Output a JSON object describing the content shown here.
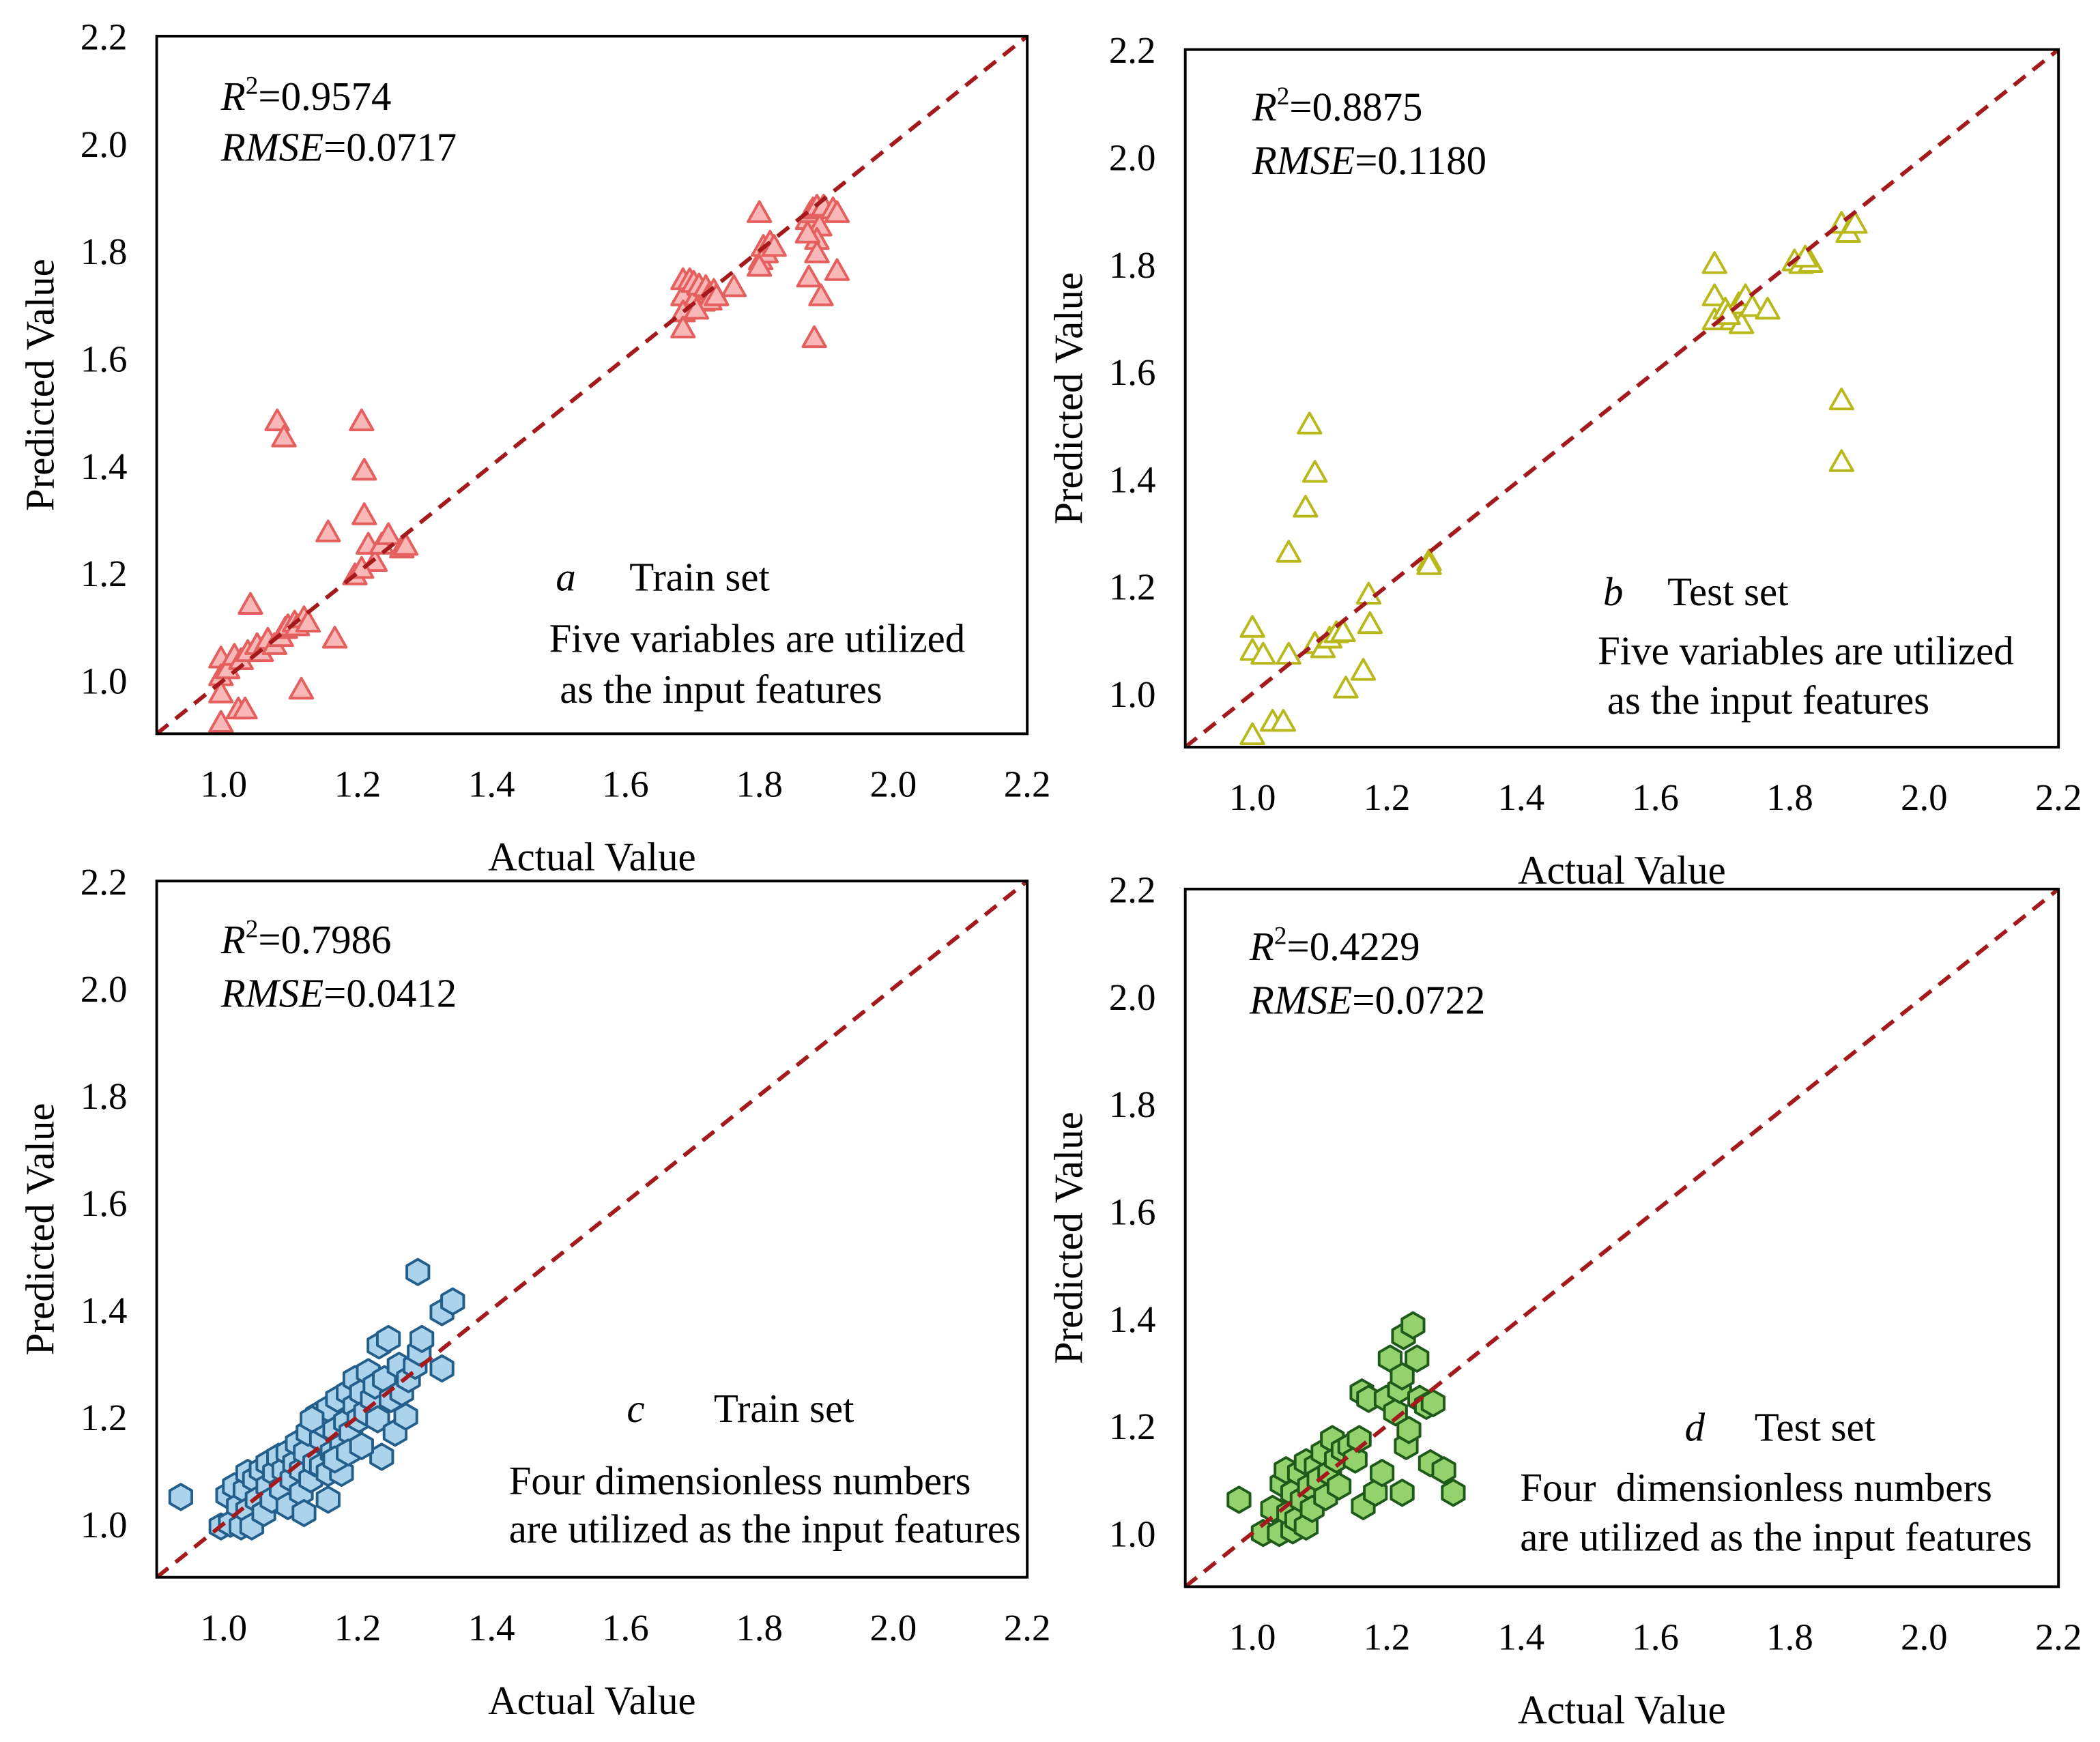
{
  "chart_data": [
    {
      "panel": "a",
      "type": "scatter",
      "subtitle": "Train set",
      "note": [
        "Five variables are utilized",
        "as the input features"
      ],
      "r2": {
        "symbol": "R",
        "exponent": "2",
        "value": "=0.9574"
      },
      "rmse": {
        "symbol": "RMSE",
        "value": "=0.0717"
      },
      "xlabel": "Actual Value",
      "ylabel": "Predicted Value",
      "xlim": [
        0.9,
        2.2
      ],
      "ylim": [
        0.9,
        2.2
      ],
      "xticks": [
        "1.0",
        "1.2",
        "1.4",
        "1.6",
        "1.8",
        "2.0",
        "2.2"
      ],
      "yticks": [
        "1.0",
        "1.2",
        "1.4",
        "1.6",
        "1.8",
        "2.0",
        "2.2"
      ],
      "reference_line": {
        "from": [
          0.9,
          0.9
        ],
        "to": [
          2.2,
          2.2
        ],
        "color": "#a3191c"
      },
      "marker": "triangle",
      "color": {
        "stroke": "#e45f5e",
        "fill": "#f7b8b7"
      },
      "points": [
        [
          0.996,
          1.038
        ],
        [
          0.996,
          1.005
        ],
        [
          0.996,
          0.973
        ],
        [
          0.996,
          0.918
        ],
        [
          1.006,
          1.018
        ],
        [
          1.016,
          1.043
        ],
        [
          1.022,
          0.943
        ],
        [
          1.032,
          0.943
        ],
        [
          1.026,
          1.035
        ],
        [
          1.036,
          1.05
        ],
        [
          1.04,
          1.138
        ],
        [
          1.05,
          1.063
        ],
        [
          1.056,
          1.05
        ],
        [
          1.066,
          1.073
        ],
        [
          1.076,
          1.063
        ],
        [
          1.08,
          1.48
        ],
        [
          1.09,
          1.45
        ],
        [
          1.086,
          1.078
        ],
        [
          1.092,
          1.093
        ],
        [
          1.096,
          1.098
        ],
        [
          1.106,
          1.105
        ],
        [
          1.11,
          1.098
        ],
        [
          1.116,
          0.98
        ],
        [
          1.12,
          1.113
        ],
        [
          1.126,
          1.105
        ],
        [
          1.156,
          1.273
        ],
        [
          1.166,
          1.075
        ],
        [
          1.196,
          1.193
        ],
        [
          1.206,
          1.48
        ],
        [
          1.21,
          1.388
        ],
        [
          1.21,
          1.305
        ],
        [
          1.216,
          1.25
        ],
        [
          1.226,
          1.218
        ],
        [
          1.236,
          1.25
        ],
        [
          1.246,
          1.268
        ],
        [
          1.266,
          1.243
        ],
        [
          1.272,
          1.248
        ],
        [
          1.206,
          1.205
        ],
        [
          1.686,
          1.743
        ],
        [
          1.686,
          1.713
        ],
        [
          1.686,
          1.683
        ],
        [
          1.686,
          1.653
        ],
        [
          1.696,
          1.743
        ],
        [
          1.702,
          1.738
        ],
        [
          1.706,
          1.713
        ],
        [
          1.71,
          1.733
        ],
        [
          1.716,
          1.703
        ],
        [
          1.72,
          1.73
        ],
        [
          1.726,
          1.718
        ],
        [
          1.732,
          1.723
        ],
        [
          1.726,
          1.705
        ],
        [
          1.736,
          1.713
        ],
        [
          1.762,
          1.73
        ],
        [
          1.706,
          1.688
        ],
        [
          1.8,
          1.868
        ],
        [
          1.802,
          1.78
        ],
        [
          1.806,
          1.805
        ],
        [
          1.81,
          1.793
        ],
        [
          1.816,
          1.813
        ],
        [
          1.822,
          1.805
        ],
        [
          1.8,
          1.768
        ],
        [
          1.872,
          1.855
        ],
        [
          1.876,
          1.868
        ],
        [
          1.88,
          1.875
        ],
        [
          1.886,
          1.88
        ],
        [
          1.89,
          1.843
        ],
        [
          1.886,
          1.818
        ],
        [
          1.886,
          1.793
        ],
        [
          1.874,
          1.748
        ],
        [
          1.892,
          1.713
        ],
        [
          1.882,
          1.635
        ],
        [
          1.896,
          1.88
        ],
        [
          1.91,
          1.875
        ],
        [
          1.916,
          1.868
        ],
        [
          1.916,
          1.76
        ],
        [
          1.872,
          1.83
        ]
      ]
    },
    {
      "panel": "b",
      "type": "scatter",
      "subtitle": "Test set",
      "note": [
        "Five variables are utilized",
        "as the input features"
      ],
      "r2": {
        "symbol": "R",
        "exponent": "2",
        "value": "=0.8875"
      },
      "rmse": {
        "symbol": "RMSE",
        "value": "=0.1180"
      },
      "xlabel": "Actual Value",
      "ylabel": "Predicted Value",
      "xlim": [
        0.9,
        2.2
      ],
      "ylim": [
        0.9,
        2.2
      ],
      "xticks": [
        "1.0",
        "1.2",
        "1.4",
        "1.6",
        "1.8",
        "2.0",
        "2.2"
      ],
      "yticks": [
        "1.0",
        "1.2",
        "1.4",
        "1.6",
        "1.8",
        "2.0",
        "2.2"
      ],
      "reference_line": {
        "from": [
          0.9,
          0.9
        ],
        "to": [
          2.2,
          2.2
        ],
        "color": "#a3191c"
      },
      "marker": "triangle",
      "color": {
        "stroke": "#b9b81b",
        "fill": "#ffffff"
      },
      "points": [
        [
          1.0,
          1.12
        ],
        [
          1.0,
          1.077
        ],
        [
          1.0,
          0.92
        ],
        [
          1.016,
          1.07
        ],
        [
          1.03,
          0.945
        ],
        [
          1.046,
          0.945
        ],
        [
          1.054,
          1.07
        ],
        [
          1.054,
          1.26
        ],
        [
          1.079,
          1.344
        ],
        [
          1.085,
          1.499
        ],
        [
          1.093,
          1.409
        ],
        [
          1.093,
          1.09
        ],
        [
          1.105,
          1.082
        ],
        [
          1.115,
          1.1
        ],
        [
          1.125,
          1.11
        ],
        [
          1.135,
          1.112
        ],
        [
          1.139,
          1.007
        ],
        [
          1.165,
          1.04
        ],
        [
          1.173,
          1.182
        ],
        [
          1.175,
          1.127
        ],
        [
          1.263,
          1.244
        ],
        [
          1.263,
          1.237
        ],
        [
          1.688,
          1.798
        ],
        [
          1.688,
          1.738
        ],
        [
          1.688,
          1.693
        ],
        [
          1.704,
          1.713
        ],
        [
          1.714,
          1.693
        ],
        [
          1.724,
          1.723
        ],
        [
          1.728,
          1.686
        ],
        [
          1.734,
          1.738
        ],
        [
          1.744,
          1.718
        ],
        [
          1.767,
          1.713
        ],
        [
          1.708,
          1.703
        ],
        [
          1.807,
          1.803
        ],
        [
          1.817,
          1.798
        ],
        [
          1.831,
          1.8
        ],
        [
          1.823,
          1.81
        ],
        [
          1.877,
          1.873
        ],
        [
          1.887,
          1.856
        ],
        [
          1.897,
          1.873
        ],
        [
          1.877,
          1.544
        ],
        [
          1.877,
          1.429
        ]
      ]
    },
    {
      "panel": "c",
      "type": "scatter",
      "subtitle": "Train set",
      "note": [
        "Four dimensionless numbers",
        "are utilized as the input features"
      ],
      "r2": {
        "symbol": "R",
        "exponent": "2",
        "value": "=0.7986"
      },
      "rmse": {
        "symbol": "RMSE",
        "value": "=0.0412"
      },
      "xlabel": "Actual Value",
      "ylabel": "Predicted Value",
      "xlim": [
        0.9,
        2.2
      ],
      "ylim": [
        0.9,
        2.2
      ],
      "xticks": [
        "1.0",
        "1.2",
        "1.4",
        "1.6",
        "1.8",
        "2.0",
        "2.2"
      ],
      "yticks": [
        "1.0",
        "1.2",
        "1.4",
        "1.6",
        "1.8",
        "2.0",
        "2.2"
      ],
      "reference_line": {
        "from": [
          0.9,
          0.9
        ],
        "to": [
          2.2,
          2.2
        ],
        "color": "#a3191c"
      },
      "marker": "hexagon",
      "color": {
        "stroke": "#245f8c",
        "fill": "#acd3ec"
      },
      "points": [
        [
          0.936,
          1.05
        ],
        [
          0.996,
          0.995
        ],
        [
          1.006,
          1.053
        ],
        [
          1.01,
          1.0
        ],
        [
          1.016,
          1.07
        ],
        [
          1.022,
          1.033
        ],
        [
          1.026,
          0.995
        ],
        [
          1.032,
          1.063
        ],
        [
          1.036,
          1.025
        ],
        [
          1.036,
          1.095
        ],
        [
          1.042,
          0.995
        ],
        [
          1.046,
          1.083
        ],
        [
          1.05,
          1.045
        ],
        [
          1.056,
          1.1
        ],
        [
          1.06,
          1.02
        ],
        [
          1.066,
          1.07
        ],
        [
          1.066,
          1.113
        ],
        [
          1.072,
          1.045
        ],
        [
          1.076,
          1.095
        ],
        [
          1.082,
          1.125
        ],
        [
          1.086,
          1.065
        ],
        [
          1.09,
          1.1
        ],
        [
          1.096,
          1.033
        ],
        [
          1.096,
          1.133
        ],
        [
          1.102,
          1.083
        ],
        [
          1.106,
          1.113
        ],
        [
          1.11,
          1.15
        ],
        [
          1.116,
          1.058
        ],
        [
          1.116,
          1.1
        ],
        [
          1.122,
          1.133
        ],
        [
          1.126,
          1.17
        ],
        [
          1.13,
          1.083
        ],
        [
          1.136,
          1.113
        ],
        [
          1.14,
          1.203
        ],
        [
          1.146,
          1.158
        ],
        [
          1.146,
          1.108
        ],
        [
          1.152,
          1.183
        ],
        [
          1.156,
          1.095
        ],
        [
          1.156,
          1.215
        ],
        [
          1.162,
          1.133
        ],
        [
          1.166,
          1.175
        ],
        [
          1.17,
          1.233
        ],
        [
          1.176,
          1.095
        ],
        [
          1.176,
          1.145
        ],
        [
          1.182,
          1.19
        ],
        [
          1.186,
          1.245
        ],
        [
          1.19,
          1.17
        ],
        [
          1.196,
          1.22
        ],
        [
          1.196,
          1.27
        ],
        [
          1.202,
          1.195
        ],
        [
          1.206,
          1.245
        ],
        [
          1.212,
          1.208
        ],
        [
          1.216,
          1.283
        ],
        [
          1.222,
          1.233
        ],
        [
          1.226,
          1.258
        ],
        [
          1.23,
          1.195
        ],
        [
          1.232,
          1.333
        ],
        [
          1.236,
          1.125
        ],
        [
          1.24,
          1.27
        ],
        [
          1.246,
          1.345
        ],
        [
          1.25,
          1.233
        ],
        [
          1.256,
          1.17
        ],
        [
          1.262,
          1.295
        ],
        [
          1.266,
          1.245
        ],
        [
          1.272,
          1.2
        ],
        [
          1.276,
          1.27
        ],
        [
          1.286,
          1.295
        ],
        [
          1.29,
          1.47
        ],
        [
          1.292,
          1.32
        ],
        [
          1.296,
          1.345
        ],
        [
          1.326,
          1.29
        ],
        [
          1.326,
          1.395
        ],
        [
          1.342,
          1.415
        ],
        [
          1.166,
          1.12
        ],
        [
          1.12,
          1.02
        ],
        [
          1.186,
          1.133
        ],
        [
          1.206,
          1.145
        ],
        [
          1.132,
          1.195
        ],
        [
          1.156,
          1.045
        ]
      ]
    },
    {
      "panel": "d",
      "type": "scatter",
      "subtitle": "Test set",
      "note": [
        "Four  dimensionless numbers",
        "are utilized as the input features"
      ],
      "r2": {
        "symbol": "R",
        "exponent": "2",
        "value": "=0.4229"
      },
      "rmse": {
        "symbol": "RMSE",
        "value": "=0.0722"
      },
      "xlabel": "Actual Value",
      "ylabel": "Predicted Value",
      "xlim": [
        0.9,
        2.2
      ],
      "ylim": [
        0.9,
        2.2
      ],
      "xticks": [
        "1.0",
        "1.2",
        "1.4",
        "1.6",
        "1.8",
        "2.0",
        "2.2"
      ],
      "yticks": [
        "1.0",
        "1.2",
        "1.4",
        "1.6",
        "1.8",
        "2.0",
        "2.2"
      ],
      "reference_line": {
        "from": [
          0.9,
          0.9
        ],
        "to": [
          2.2,
          2.2
        ],
        "color": "#a3191c"
      },
      "marker": "hexagon",
      "color": {
        "stroke": "#1e5a1a",
        "fill": "#94d26d"
      },
      "points": [
        [
          0.98,
          1.062
        ],
        [
          1.016,
          1.0
        ],
        [
          1.03,
          1.045
        ],
        [
          1.04,
          1.0
        ],
        [
          1.044,
          1.092
        ],
        [
          1.05,
          1.117
        ],
        [
          1.054,
          1.037
        ],
        [
          1.06,
          1.075
        ],
        [
          1.06,
          1.005
        ],
        [
          1.066,
          1.025
        ],
        [
          1.07,
          1.112
        ],
        [
          1.074,
          1.062
        ],
        [
          1.08,
          1.012
        ],
        [
          1.08,
          1.132
        ],
        [
          1.085,
          1.087
        ],
        [
          1.089,
          1.045
        ],
        [
          1.095,
          1.125
        ],
        [
          1.099,
          1.1
        ],
        [
          1.105,
          1.15
        ],
        [
          1.109,
          1.067
        ],
        [
          1.115,
          1.112
        ],
        [
          1.119,
          1.175
        ],
        [
          1.125,
          1.137
        ],
        [
          1.129,
          1.087
        ],
        [
          1.135,
          1.155
        ],
        [
          1.145,
          1.162
        ],
        [
          1.153,
          1.137
        ],
        [
          1.159,
          1.175
        ],
        [
          1.163,
          1.262
        ],
        [
          1.165,
          1.05
        ],
        [
          1.173,
          1.25
        ],
        [
          1.183,
          1.075
        ],
        [
          1.193,
          1.112
        ],
        [
          1.199,
          1.25
        ],
        [
          1.205,
          1.325
        ],
        [
          1.213,
          1.225
        ],
        [
          1.219,
          1.267
        ],
        [
          1.223,
          1.292
        ],
        [
          1.223,
          1.075
        ],
        [
          1.225,
          1.367
        ],
        [
          1.229,
          1.162
        ],
        [
          1.233,
          1.192
        ],
        [
          1.239,
          1.387
        ],
        [
          1.245,
          1.325
        ],
        [
          1.249,
          1.25
        ],
        [
          1.259,
          1.237
        ],
        [
          1.265,
          1.13
        ],
        [
          1.269,
          1.242
        ],
        [
          1.285,
          1.117
        ],
        [
          1.299,
          1.075
        ]
      ]
    }
  ]
}
